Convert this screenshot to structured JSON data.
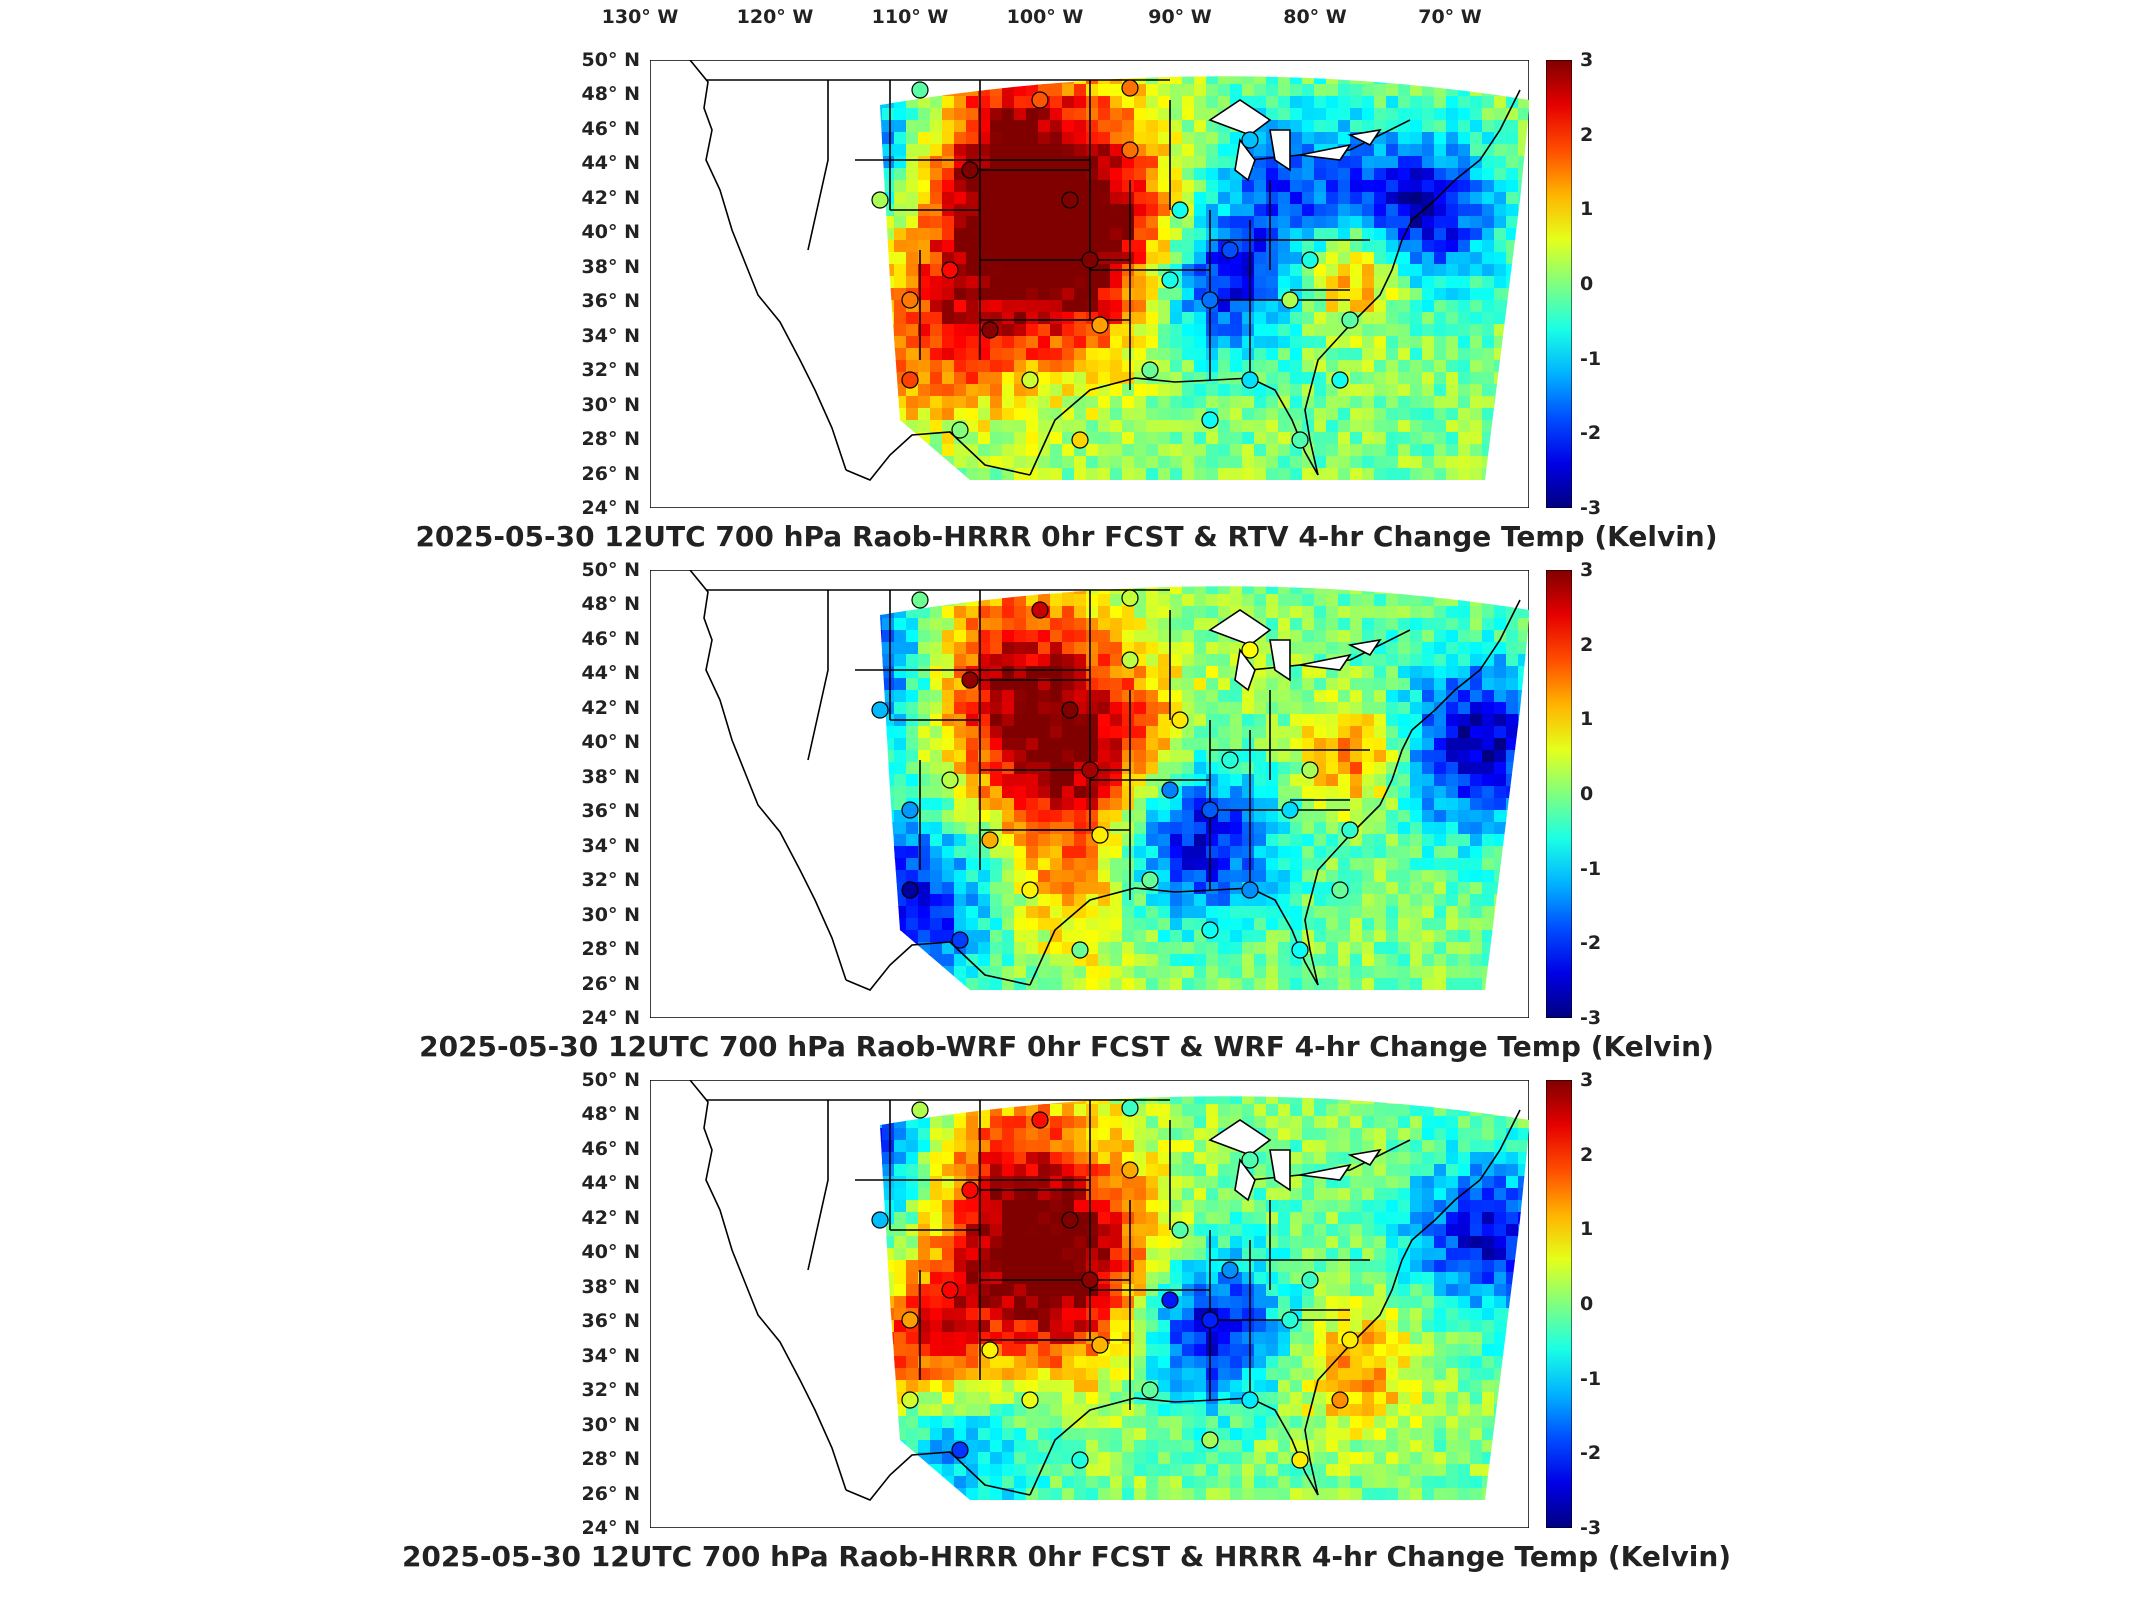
{
  "lon_labels": [
    "130° W",
    "120° W",
    "110° W",
    "100° W",
    "90° W",
    "80° W",
    "70° W"
  ],
  "lat_labels": [
    "50° N",
    "48° N",
    "46° N",
    "44° N",
    "42° N",
    "40° N",
    "38° N",
    "36° N",
    "34° N",
    "32° N",
    "30° N",
    "28° N",
    "26° N",
    "24° N"
  ],
  "colorbar": {
    "ticks": [
      "3",
      "2",
      "1",
      "0",
      "-1",
      "-2",
      "-3"
    ],
    "colormap": "jet",
    "min": -3,
    "max": 3
  },
  "panels": [
    {
      "title": "2025-05-30 12UTC 700 hPa Raob-HRRR 0hr FCST & RTV 4-hr Change Temp (Kelvin)"
    },
    {
      "title": "2025-05-30 12UTC 700 hPa Raob-WRF 0hr FCST & WRF 4-hr Change Temp (Kelvin)"
    },
    {
      "title": "2025-05-30 12UTC 700 hPa Raob-HRRR 0hr FCST & HRRR 4-hr Change Temp (Kelvin)"
    }
  ]
}
